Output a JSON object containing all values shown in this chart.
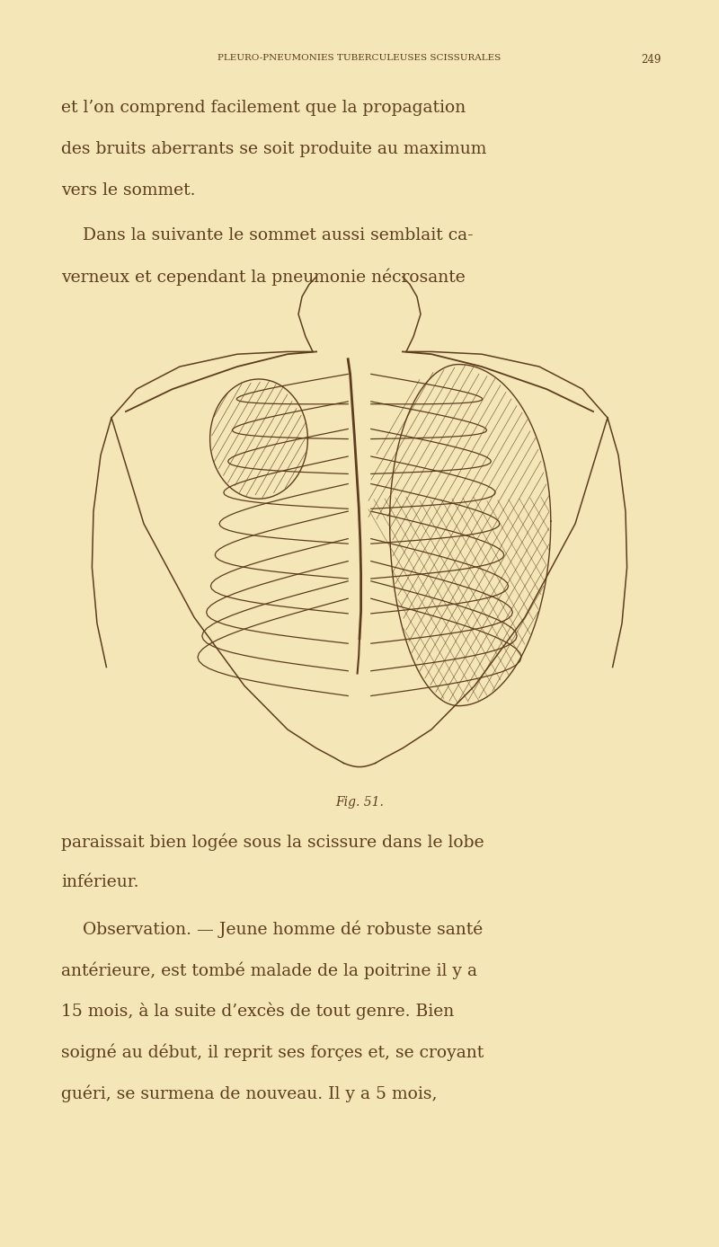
{
  "bg_color": "#F5E6B8",
  "text_color": "#5C3D1E",
  "header_text": "PLEURO-PNEUMONIES TUBERCULEUSES SCISSURALES",
  "page_number": "249",
  "para1_lines": [
    "et l’on comprend facilement que la propagation",
    "des bruits aberrants se soit produite au maximum",
    "vers le sommet."
  ],
  "para2_lines": [
    "    Dans la suivante le sommet aussi semblait ca-",
    "verneux et cependant la pneumonie nécrosante"
  ],
  "fig_caption": "Fig. 51.",
  "para3_lines": [
    "paraissait bien logée sous la scissure dans le lobe",
    "inférieur."
  ],
  "para4_lines": [
    "    Observation. — Jeune homme dé robuste santé",
    "antérieure, est tombé malade de la poitrine il y a",
    "15 mois, à la suite d’excès de tout genre. Bien",
    "soigné au début, il reprit ses forçes et, se croyant",
    "guéri, se surmena de nouveau. Il y a 5 mois,"
  ],
  "font_size_header": 7.5,
  "font_size_body": 13.5,
  "font_size_caption": 10
}
